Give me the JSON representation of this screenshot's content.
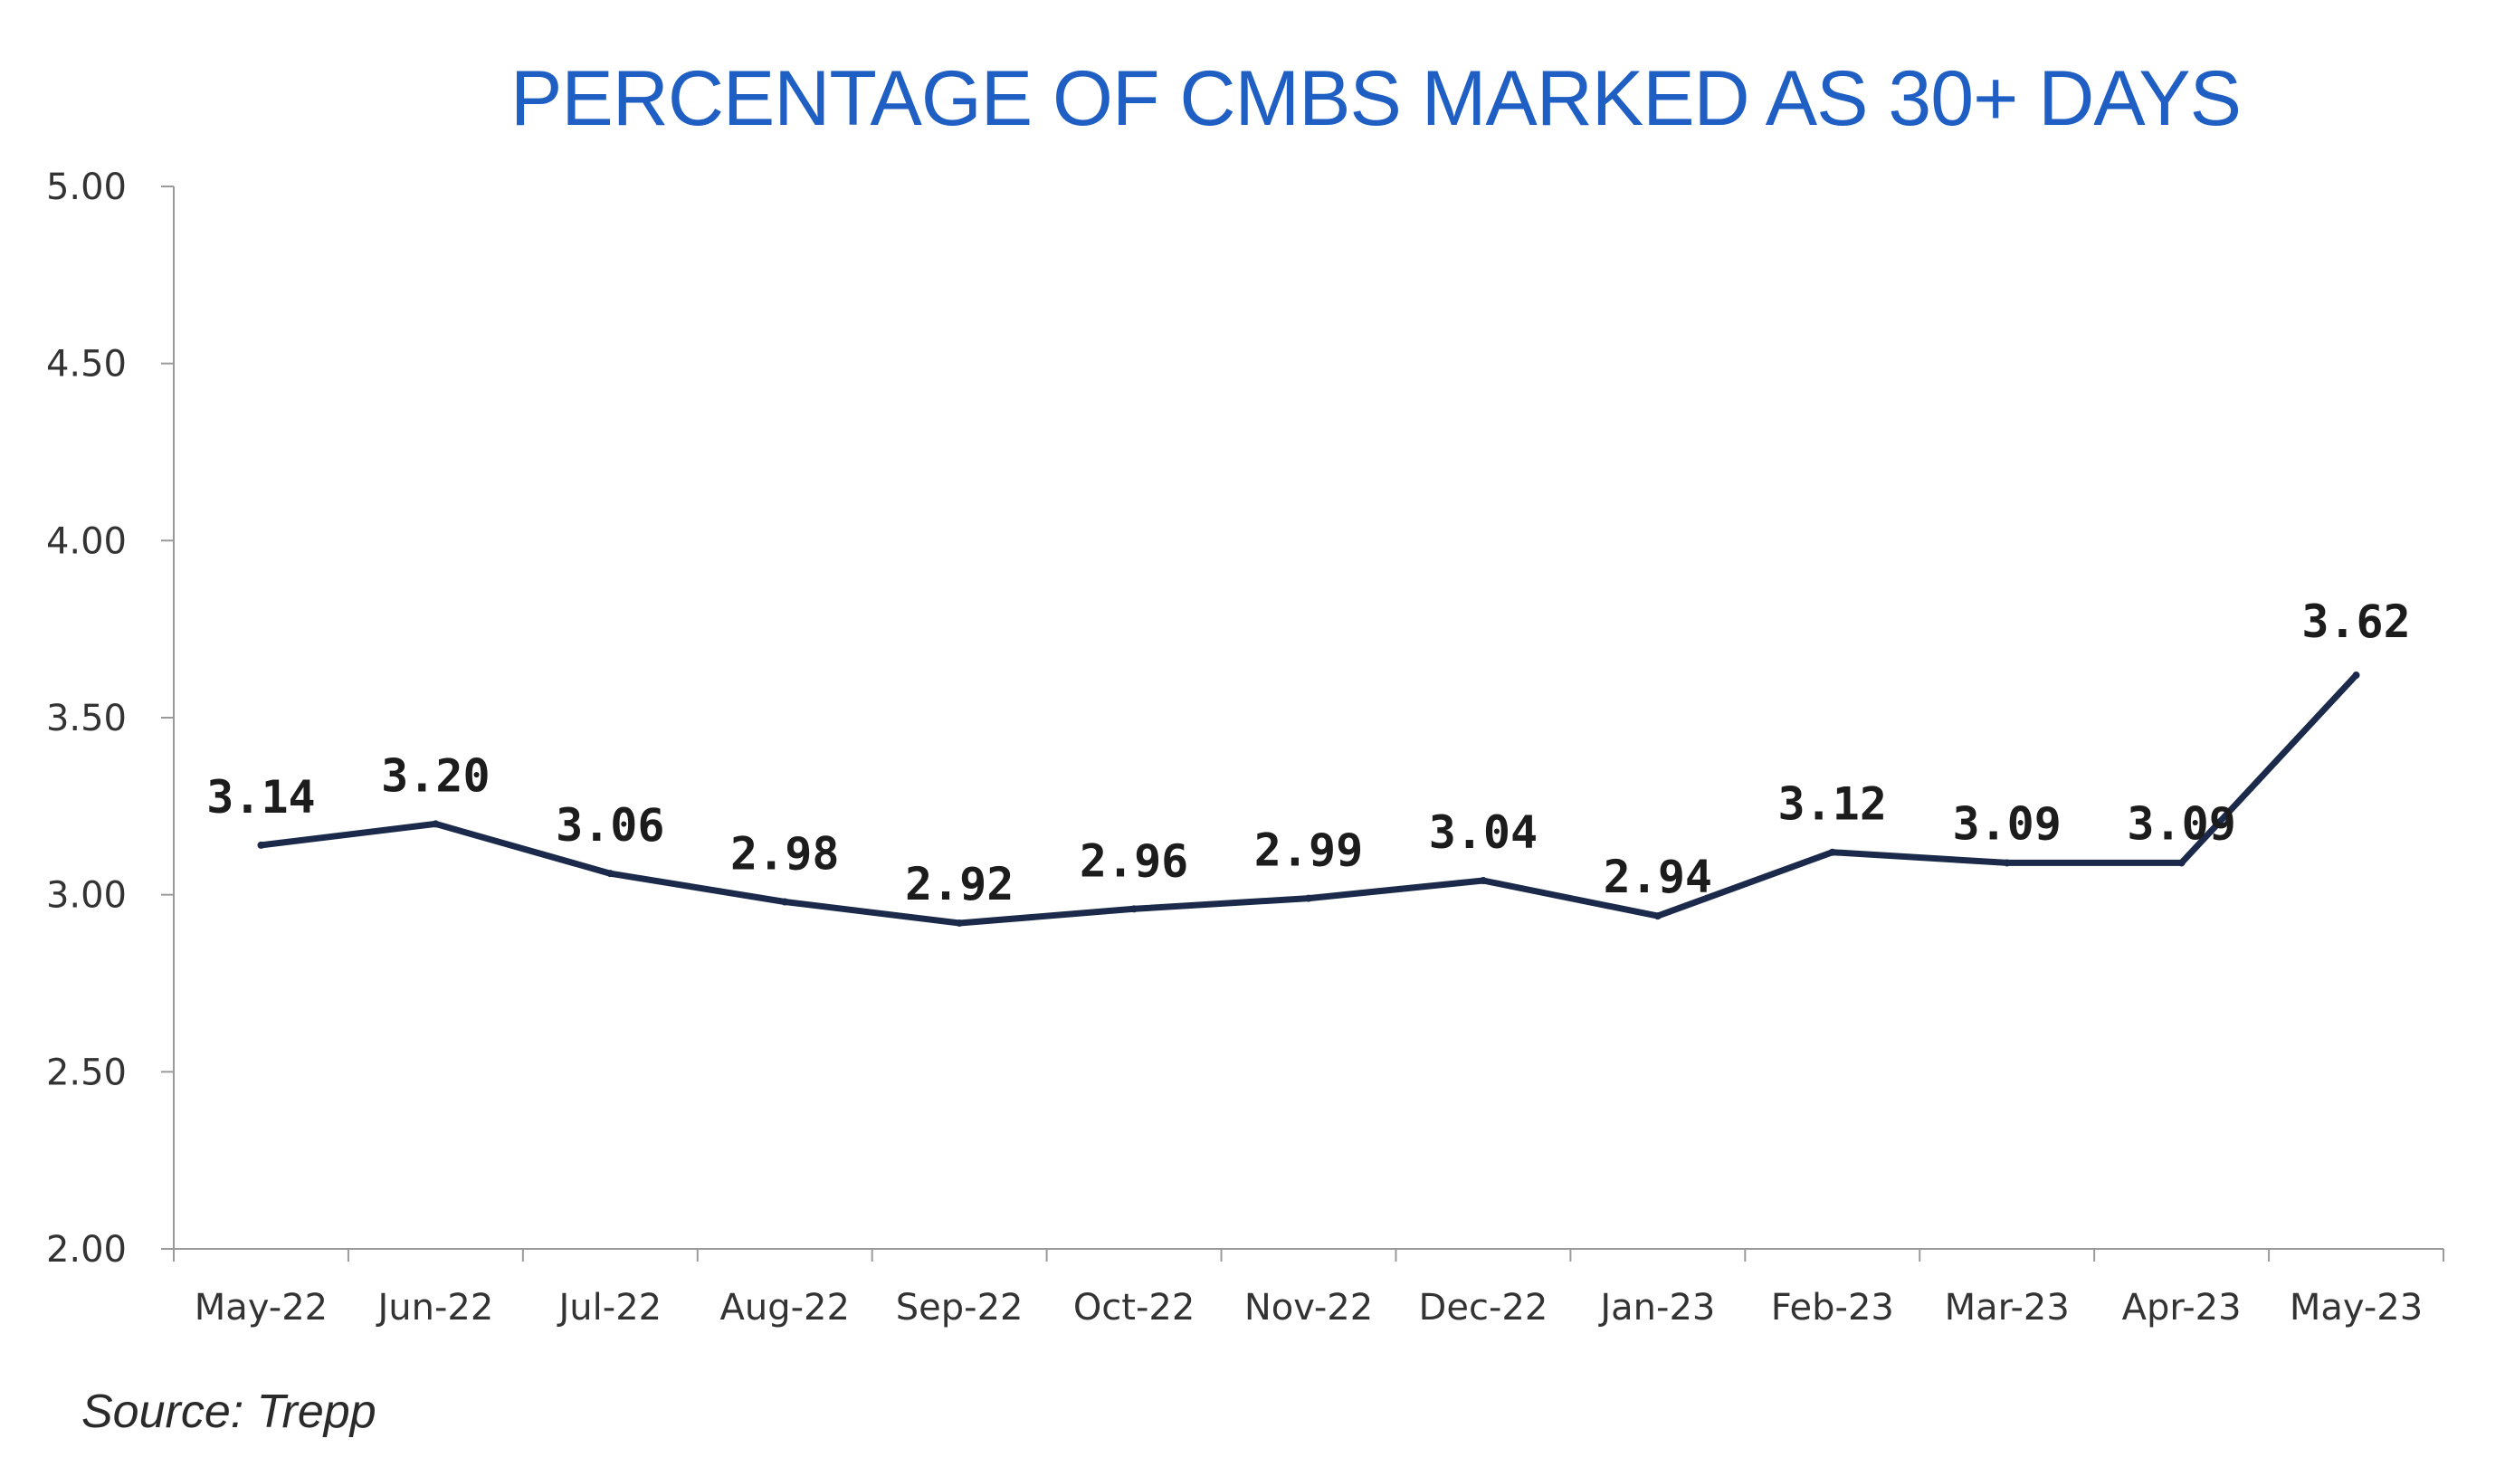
{
  "chart_data": {
    "type": "line",
    "title": "PERCENTAGE OF CMBS MARKED AS 30+ DAYS",
    "xlabel": "",
    "ylabel": "",
    "categories": [
      "May-22",
      "Jun-22",
      "Jul-22",
      "Aug-22",
      "Sep-22",
      "Oct-22",
      "Nov-22",
      "Dec-22",
      "Jan-23",
      "Feb-23",
      "Mar-23",
      "Apr-23",
      "May-23"
    ],
    "series": [
      {
        "values": [
          3.14,
          3.2,
          3.06,
          2.98,
          2.92,
          2.96,
          2.99,
          3.04,
          2.94,
          3.12,
          3.09,
          3.09,
          3.62
        ],
        "data_labels": [
          "3.14",
          "3.20",
          "3.06",
          "2.98",
          "2.92",
          "2.96",
          "2.99",
          "3.04",
          "2.94",
          "3.12",
          "3.09",
          "3.09",
          "3.62"
        ]
      }
    ],
    "ylim": [
      2.0,
      5.0
    ],
    "yticks": [
      2.0,
      2.5,
      3.0,
      3.5,
      4.0,
      4.5,
      5.0
    ],
    "ytick_labels": [
      "2.00",
      "2.50",
      "3.00",
      "3.50",
      "4.00",
      "4.50",
      "5.00"
    ],
    "grid": false,
    "legend": "none",
    "line_color": "#1b2a4a",
    "title_color": "#1f5fc4"
  },
  "source": "Source: Trepp"
}
